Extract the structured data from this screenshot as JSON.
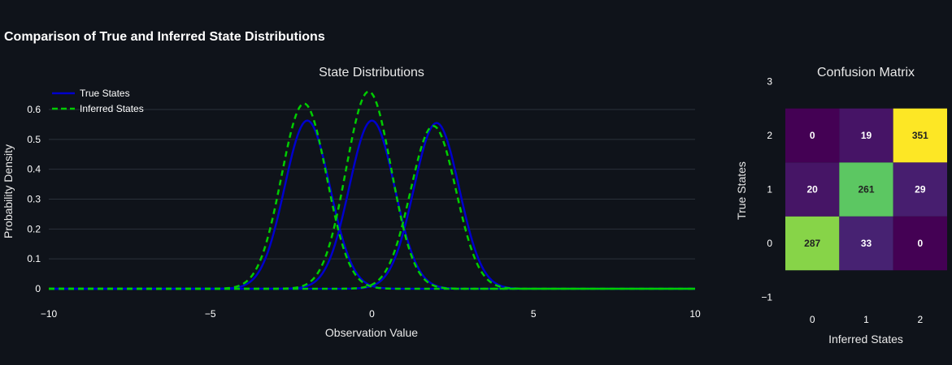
{
  "title": "Comparison of True and Inferred State Distributions",
  "chart_data": [
    {
      "type": "line",
      "title": "State Distributions",
      "xlabel": "Observation Value",
      "ylabel": "Probability Density",
      "xlim": [
        -10,
        10
      ],
      "ylim": [
        0,
        0.65
      ],
      "xticks": [
        -10,
        -5,
        0,
        5,
        10
      ],
      "xtick_labels": [
        "−10",
        "−5",
        "0",
        "5",
        "10"
      ],
      "yticks": [
        0,
        0.1,
        0.2,
        0.3,
        0.4,
        0.5,
        0.6
      ],
      "ytick_labels": [
        "0",
        "0.1",
        "0.2",
        "0.3",
        "0.4",
        "0.5",
        "0.6"
      ],
      "grid": true,
      "legend": "top-left",
      "series": [
        {
          "name": "True States",
          "color": "#0000cc",
          "dash": "solid",
          "components": [
            {
              "mean": -2.0,
              "peak": 0.563
            },
            {
              "mean": 0.0,
              "peak": 0.563
            },
            {
              "mean": 2.0,
              "peak": 0.555
            }
          ]
        },
        {
          "name": "Inferred States",
          "color": "#00cc00",
          "dash": "dashed",
          "components": [
            {
              "mean": -2.1,
              "peak": 0.62
            },
            {
              "mean": -0.1,
              "peak": 0.66
            },
            {
              "mean": 1.9,
              "peak": 0.545
            }
          ]
        }
      ]
    },
    {
      "type": "heatmap",
      "title": "Confusion Matrix",
      "xlabel": "Inferred States",
      "ylabel": "True States",
      "x_categories": [
        "0",
        "1",
        "2"
      ],
      "y_categories": [
        "0",
        "1",
        "2"
      ],
      "extra_y_ticks": [
        "−1",
        "3"
      ],
      "values": [
        [
          287,
          33,
          0
        ],
        [
          20,
          261,
          29
        ],
        [
          0,
          19,
          351
        ]
      ],
      "colorscale": "viridis"
    }
  ]
}
